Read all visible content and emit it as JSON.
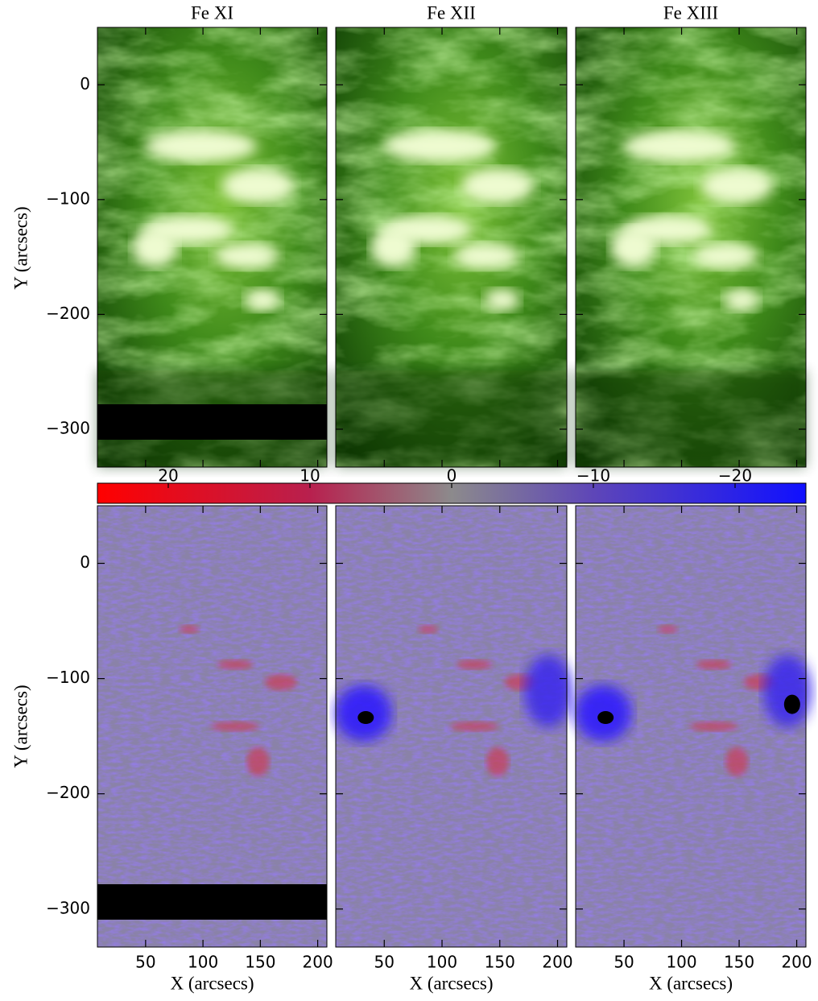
{
  "panels": {
    "titles": [
      "Fe XI",
      "Fe XII",
      "Fe XIII"
    ]
  },
  "y_axis": {
    "label": "Y (arcsecs)",
    "lim": [
      -333,
      50
    ],
    "ticks": [
      0,
      {
        "value": -100,
        "label": "−100"
      },
      {
        "value": -200,
        "label": "−200"
      },
      {
        "value": -300,
        "label": "−300"
      }
    ]
  },
  "x_axis": {
    "label": "X (arcsecs)",
    "lim": [
      8,
      208
    ],
    "ticks": [
      50,
      100,
      150,
      200
    ]
  },
  "colorbar": {
    "lim": [
      25,
      -25
    ],
    "ticks": [
      20,
      10,
      0,
      {
        "value": -10,
        "label": "−10"
      },
      {
        "value": -20,
        "label": "−20"
      }
    ]
  }
}
